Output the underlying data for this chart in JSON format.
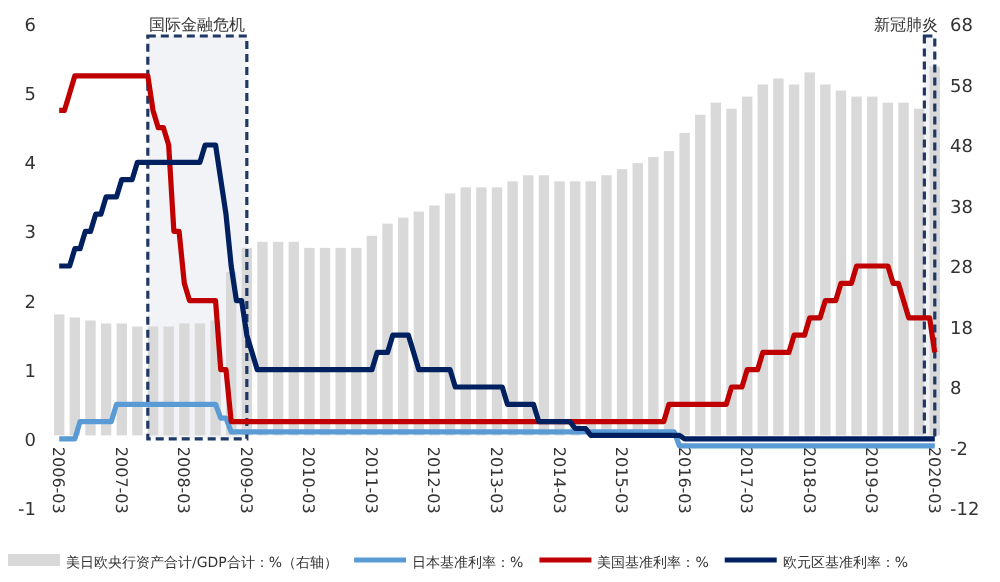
{
  "chart_data": {
    "type": "line",
    "series": [
      {
        "name": "美日欧央行资产合计/GDP合计：%（右轴）",
        "type": "bar",
        "axis": "y2",
        "color": "#d9d9d9",
        "x": [
          "2006-03",
          "2006-06",
          "2006-09",
          "2006-12",
          "2007-03",
          "2007-06",
          "2007-09",
          "2007-12",
          "2008-03",
          "2008-06",
          "2008-09",
          "2008-12",
          "2009-03",
          "2009-06",
          "2009-09",
          "2009-12",
          "2010-03",
          "2010-06",
          "2010-09",
          "2010-12",
          "2011-03",
          "2011-06",
          "2011-09",
          "2011-12",
          "2012-03",
          "2012-06",
          "2012-09",
          "2012-12",
          "2013-03",
          "2013-06",
          "2013-09",
          "2013-12",
          "2014-03",
          "2014-06",
          "2014-09",
          "2014-12",
          "2015-03",
          "2015-06",
          "2015-09",
          "2015-12",
          "2016-03",
          "2016-06",
          "2016-09",
          "2016-12",
          "2017-03",
          "2017-06",
          "2017-09",
          "2017-12",
          "2018-03",
          "2018-06",
          "2018-09",
          "2018-12",
          "2019-03",
          "2019-06",
          "2019-09",
          "2019-12",
          "2020-03"
        ],
        "values": [
          20,
          19.5,
          19,
          18.5,
          18.5,
          18,
          18,
          18,
          18.5,
          18.5,
          19,
          27,
          31,
          32,
          32,
          32,
          31,
          31,
          31,
          31,
          33,
          35,
          36,
          37,
          38,
          40,
          41,
          41,
          41,
          42,
          43,
          43,
          42,
          42,
          42,
          43,
          44,
          45,
          46,
          47,
          50,
          53,
          55,
          54,
          56,
          58,
          59,
          58,
          60,
          58,
          57,
          56,
          56,
          55,
          55,
          54,
          61
        ]
      },
      {
        "name": "日本基准利率：%",
        "color": "#5b9bd5",
        "x": [
          "2006-03",
          "2006-06",
          "2006-07",
          "2007-01",
          "2007-02",
          "2008-09",
          "2008-10",
          "2008-11",
          "2008-12",
          "2016-01",
          "2016-02",
          "2020-03"
        ],
        "values": [
          0,
          0,
          0.25,
          0.25,
          0.5,
          0.5,
          0.3,
          0.3,
          0.1,
          0.1,
          -0.1,
          -0.1
        ]
      },
      {
        "name": "美国基准利率：%",
        "color": "#c00000",
        "x": [
          "2006-03",
          "2006-04",
          "2006-05",
          "2006-06",
          "2007-08",
          "2007-09",
          "2007-10",
          "2007-11",
          "2007-12",
          "2008-01",
          "2008-02",
          "2008-03",
          "2008-04",
          "2008-09",
          "2008-10",
          "2008-11",
          "2008-12",
          "2015-11",
          "2015-12",
          "2016-11",
          "2016-12",
          "2017-02",
          "2017-03",
          "2017-05",
          "2017-06",
          "2017-11",
          "2017-12",
          "2018-02",
          "2018-03",
          "2018-05",
          "2018-06",
          "2018-08",
          "2018-09",
          "2018-11",
          "2018-12",
          "2019-06",
          "2019-07",
          "2019-08",
          "2019-09",
          "2019-10",
          "2020-02",
          "2020-03"
        ],
        "values": [
          4.75,
          4.75,
          5,
          5.25,
          5.25,
          4.75,
          4.5,
          4.5,
          4.25,
          3,
          3,
          2.25,
          2,
          2,
          1,
          1,
          0.25,
          0.25,
          0.5,
          0.5,
          0.75,
          0.75,
          1,
          1,
          1.25,
          1.25,
          1.5,
          1.5,
          1.75,
          1.75,
          2,
          2,
          2.25,
          2.25,
          2.5,
          2.5,
          2.25,
          2.25,
          2,
          1.75,
          1.75,
          1.25
        ]
      },
      {
        "name": "欧元区基准利率：%",
        "color": "#002060",
        "x": [
          "2006-03",
          "2006-05",
          "2006-06",
          "2006-07",
          "2006-08",
          "2006-09",
          "2006-10",
          "2006-11",
          "2006-12",
          "2007-02",
          "2007-03",
          "2007-05",
          "2007-06",
          "2008-06",
          "2008-07",
          "2008-09",
          "2008-10",
          "2008-11",
          "2008-12",
          "2009-01",
          "2009-02",
          "2009-03",
          "2009-04",
          "2009-05",
          "2011-03",
          "2011-04",
          "2011-06",
          "2011-07",
          "2011-10",
          "2011-11",
          "2011-12",
          "2012-06",
          "2012-07",
          "2013-04",
          "2013-05",
          "2013-10",
          "2013-11",
          "2014-05",
          "2014-06",
          "2014-08",
          "2014-09",
          "2016-02",
          "2016-03",
          "2020-03"
        ],
        "values": [
          2.5,
          2.5,
          2.75,
          2.75,
          3,
          3,
          3.25,
          3.25,
          3.5,
          3.5,
          3.75,
          3.75,
          4,
          4,
          4.25,
          4.25,
          3.75,
          3.25,
          2.5,
          2,
          2,
          1.5,
          1.25,
          1,
          1,
          1.25,
          1.25,
          1.5,
          1.5,
          1.25,
          1,
          1,
          0.75,
          0.75,
          0.5,
          0.5,
          0.25,
          0.25,
          0.15,
          0.15,
          0.05,
          0.05,
          0,
          0
        ]
      }
    ],
    "xlim": [
      "2006-02",
      "2020-04"
    ],
    "xticks": [
      "2006-03",
      "2007-03",
      "2008-03",
      "2009-03",
      "2010-03",
      "2011-03",
      "2012-03",
      "2013-03",
      "2014-03",
      "2015-03",
      "2016-03",
      "2017-03",
      "2018-03",
      "2019-03",
      "2020-03"
    ],
    "ylim": [
      -1,
      6
    ],
    "yticks": [
      -1,
      0,
      1,
      2,
      3,
      4,
      5,
      6
    ],
    "y2lim": [
      -12,
      68
    ],
    "y2ticks": [
      -12,
      -2,
      8,
      18,
      28,
      38,
      48,
      58,
      68
    ],
    "bands": [
      {
        "axis": "x",
        "from": "2007-08",
        "to": "2009-03",
        "label": "国际金融危机",
        "color": "#203864"
      },
      {
        "axis": "x",
        "from": "2020-01",
        "to": "2020-03",
        "label": "新冠肺炎",
        "color": "#203864"
      }
    ],
    "legend": "bottom",
    "grid": false,
    "line_style": "solid"
  }
}
